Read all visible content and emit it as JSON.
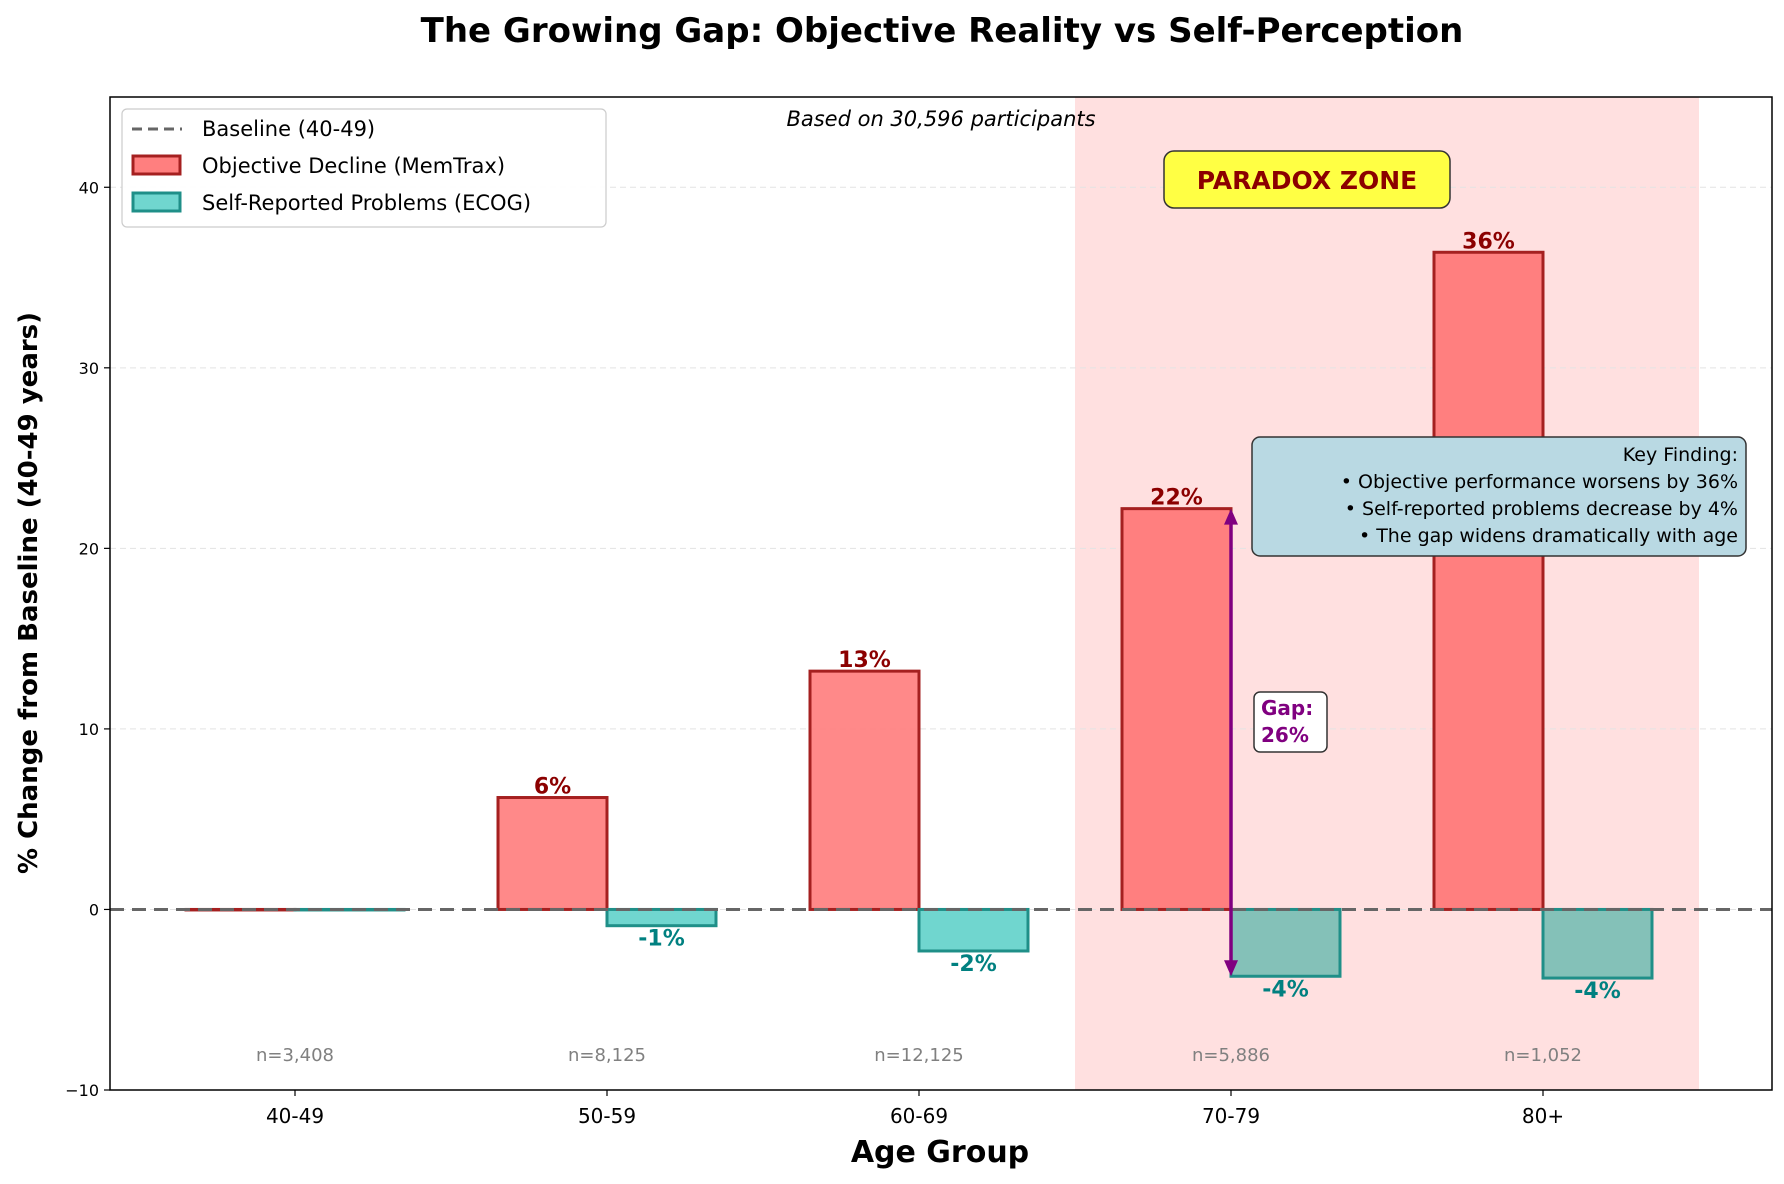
{
  "chart_data": {
    "type": "bar",
    "title": "The Growing Gap: Objective Reality vs Self-Perception",
    "xlabel": "Age Group",
    "ylabel": "% Change from Baseline (40-49 years)",
    "categories": [
      "40-49",
      "50-59",
      "60-69",
      "70-79",
      "80+"
    ],
    "ylim": [
      -10,
      45
    ],
    "yticks": [
      -10,
      0,
      10,
      20,
      30,
      40
    ],
    "grid": "horizontal dashed",
    "legend_position": "top-left",
    "series": [
      {
        "name": "Objective Decline (MemTrax)",
        "values": [
          0,
          6.2,
          13.2,
          22.2,
          36.4
        ],
        "labels": [
          "",
          "6%",
          "13%",
          "22%",
          "36%"
        ],
        "color": "#ff7f7f",
        "edge_color": "#a52020",
        "label_color": "#8b0000"
      },
      {
        "name": "Self-Reported Problems (ECOG)",
        "values": [
          0,
          -0.9,
          -2.3,
          -3.7,
          -3.8
        ],
        "labels": [
          "",
          "-1%",
          "-2%",
          "-4%",
          "-4%"
        ],
        "color": "#70d6cf",
        "color_paradox": "#84c1b8",
        "edge_color": "#1f8f88",
        "label_color": "#008080"
      }
    ],
    "sample_sizes": [
      "n=3,408",
      "n=8,125",
      "n=12,125",
      "n=5,886",
      "n=1,052"
    ],
    "baseline": {
      "name": "Baseline (40-49)",
      "value": 0,
      "color": "#666666"
    },
    "subtitle_note": "Based on 30,596 participants",
    "paradox_zone": {
      "label": "PARADOX ZONE",
      "from_category": "70-79",
      "to_category": "80+",
      "color": "#ffe0e0",
      "label_bg": "#ffff44",
      "label_color": "#8b0000"
    },
    "gap_annotation": {
      "category": "70-79",
      "line1": "Gap:",
      "line2": "26%",
      "color": "#800080",
      "from_value": 22.2,
      "to_value": -3.7
    },
    "key_finding": {
      "lines": [
        "Key Finding:",
        "• Objective performance worsens by 36%",
        "• Self-reported problems decrease by 4%",
        "• The gap widens dramatically with age"
      ],
      "bg": "#b9d9e3"
    }
  }
}
